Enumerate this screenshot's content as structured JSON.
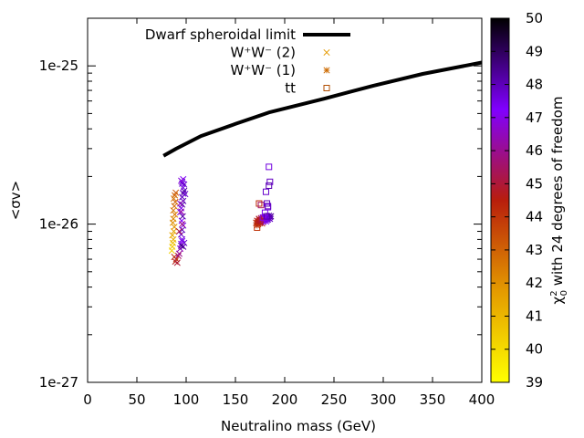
{
  "chart_data": {
    "type": "scatter",
    "title": "",
    "xlabel": "Neutralino mass (GeV)",
    "ylabel": "<σv>",
    "xlim": [
      0,
      400
    ],
    "ylim": [
      1e-27,
      2e-25
    ],
    "yscale": "log",
    "x_ticks": [
      0,
      50,
      100,
      150,
      200,
      250,
      300,
      350,
      400
    ],
    "y_ticks": [
      {
        "value": 1e-27,
        "label": "1e-27"
      },
      {
        "value": 1e-26,
        "label": "1e-26"
      },
      {
        "value": 1e-25,
        "label": "1e-25"
      }
    ],
    "colorbar": {
      "label_prefix": "χ",
      "label_sup": "2",
      "label_sub": "0",
      "label_suffix": " with 24 degrees of freedom",
      "range": [
        39,
        50
      ],
      "ticks": [
        39,
        40,
        41,
        42,
        43,
        44,
        45,
        46,
        47,
        48,
        49,
        50
      ],
      "stops": [
        {
          "value": 39,
          "color": "#ffff00"
        },
        {
          "value": 41.75,
          "color": "#e49b00"
        },
        {
          "value": 44.5,
          "color": "#b81e0c"
        },
        {
          "value": 47.25,
          "color": "#8000ff"
        },
        {
          "value": 50,
          "color": "#000000"
        }
      ]
    },
    "legend": {
      "position": "top-left",
      "entries": [
        {
          "label": "Dwarf spheroidal limit",
          "symbol": "line",
          "color": "#000000"
        },
        {
          "label": "W⁺W⁻ (2)",
          "symbol": "x",
          "color": "#e49b00"
        },
        {
          "label": "W⁺W⁻ (1)",
          "symbol": "star",
          "color": "#cc6a00"
        },
        {
          "label": "tt",
          "symbol": "square",
          "color": "#b04d00"
        }
      ]
    },
    "series": [
      {
        "name": "Dwarf spheroidal limit",
        "type": "line",
        "x": [
          77,
          90,
          115,
          150,
          185,
          240,
          290,
          340,
          400
        ],
        "y": [
          2.7e-26,
          3e-26,
          3.6e-26,
          4.3e-26,
          5.1e-26,
          6.2e-26,
          7.5e-26,
          8.9e-26,
          1.05e-25
        ]
      },
      {
        "name": "W⁺W⁻ (2)",
        "type": "scatter",
        "marker": "x",
        "x": [
          85.5,
          86,
          86.5,
          87,
          86,
          87.5,
          88,
          86.5,
          87,
          88.5,
          87,
          88,
          89,
          87.5,
          88.5,
          89.5,
          88,
          89,
          90,
          91,
          92,
          93,
          94,
          95,
          96,
          95,
          96,
          97,
          95.5,
          96.5,
          94,
          95,
          96,
          97,
          96,
          97,
          98,
          99,
          97,
          98,
          96,
          97,
          95,
          96,
          97,
          98,
          95,
          96,
          94,
          95,
          96,
          93
        ],
        "y": [
          6.8e-27,
          7.2e-27,
          7.6e-27,
          8e-27,
          8.5e-27,
          9e-27,
          9.6e-27,
          1.02e-26,
          1.08e-26,
          1.15e-26,
          1.22e-26,
          1.3e-26,
          1.38e-26,
          1.45e-26,
          1.52e-26,
          1.58e-26,
          6.2e-27,
          5.8e-27,
          6e-27,
          5.7e-27,
          6.3e-27,
          6.5e-27,
          7e-27,
          7.5e-27,
          8e-27,
          8.6e-27,
          9.2e-27,
          9.8e-27,
          1.05e-26,
          1.12e-26,
          1.19e-26,
          1.26e-26,
          1.33e-26,
          1.4e-26,
          1.48e-26,
          1.56e-26,
          1.62e-26,
          1.55e-26,
          1.7e-26,
          1.78e-26,
          1.85e-26,
          1.92e-26,
          1.88e-26,
          1.8e-26,
          7.2e-27,
          7.6e-27,
          7.3e-27,
          7.8e-27,
          1.35e-26,
          1.2e-26,
          1e-26,
          9e-27
        ],
        "chi2": [
          40.3,
          40.5,
          40.8,
          41.2,
          41.4,
          41.6,
          41.9,
          42.0,
          42.2,
          42.4,
          42.5,
          42.8,
          43.0,
          42.6,
          42.9,
          43.2,
          44.3,
          44.6,
          44.0,
          45.0,
          45.5,
          46.0,
          46.5,
          47.0,
          47.5,
          47.8,
          48.0,
          47.6,
          47.2,
          48.2,
          46.8,
          47.4,
          48.3,
          48.0,
          47.9,
          48.1,
          48.4,
          47.7,
          47.5,
          47.8,
          48.0,
          47.3,
          46.9,
          47.6,
          48.2,
          47.9,
          48.5,
          47.4,
          46.5,
          46.2,
          45.8,
          45.2
        ]
      },
      {
        "name": "W⁺W⁻ (1)",
        "type": "scatter",
        "marker": "star",
        "x": [
          171,
          172,
          173,
          174,
          175,
          176,
          177,
          172,
          173,
          174,
          175,
          176,
          177,
          178,
          179,
          180,
          181,
          182,
          183,
          184,
          185,
          186,
          185,
          184,
          183,
          182,
          181,
          180
        ],
        "y": [
          1.02e-26,
          1.05e-26,
          1e-26,
          1.08e-26,
          1.03e-26,
          1.06e-26,
          1.01e-26,
          9.8e-27,
          1.04e-26,
          1.07e-26,
          1.02e-26,
          1.09e-26,
          1.05e-26,
          1.03e-26,
          1.06e-26,
          1.08e-26,
          1.04e-26,
          1.1e-26,
          1.07e-26,
          1.09e-26,
          1.11e-26,
          1.12e-26,
          1.08e-26,
          1.13e-26,
          1.1e-26,
          1.06e-26,
          1.12e-26,
          1.09e-26
        ],
        "chi2": [
          44.2,
          44.5,
          44.0,
          44.6,
          44.3,
          44.8,
          44.4,
          44.1,
          44.7,
          45.0,
          44.9,
          45.3,
          45.6,
          46.0,
          46.5,
          47.0,
          47.3,
          47.6,
          47.8,
          48.0,
          48.2,
          48.3,
          47.9,
          48.1,
          47.7,
          47.5,
          47.9,
          47.4
        ]
      },
      {
        "name": "tt",
        "type": "scatter",
        "marker": "square",
        "x": [
          172,
          173,
          174,
          175,
          176,
          178,
          180,
          181,
          182,
          183,
          184,
          185,
          184,
          183,
          182
        ],
        "y": [
          9.5e-27,
          1.02e-26,
          1.35e-26,
          1.05e-26,
          1.32e-26,
          1.1e-26,
          1.18e-26,
          1.6e-26,
          1.35e-26,
          1.28e-26,
          1.75e-26,
          1.85e-26,
          2.3e-26,
          1.3e-26,
          1.12e-26
        ],
        "chi2": [
          44.0,
          44.3,
          44.2,
          44.6,
          45.5,
          46.8,
          47.5,
          47.8,
          48.0,
          47.6,
          48.1,
          47.9,
          47.6,
          47.9,
          48.2
        ]
      }
    ]
  }
}
